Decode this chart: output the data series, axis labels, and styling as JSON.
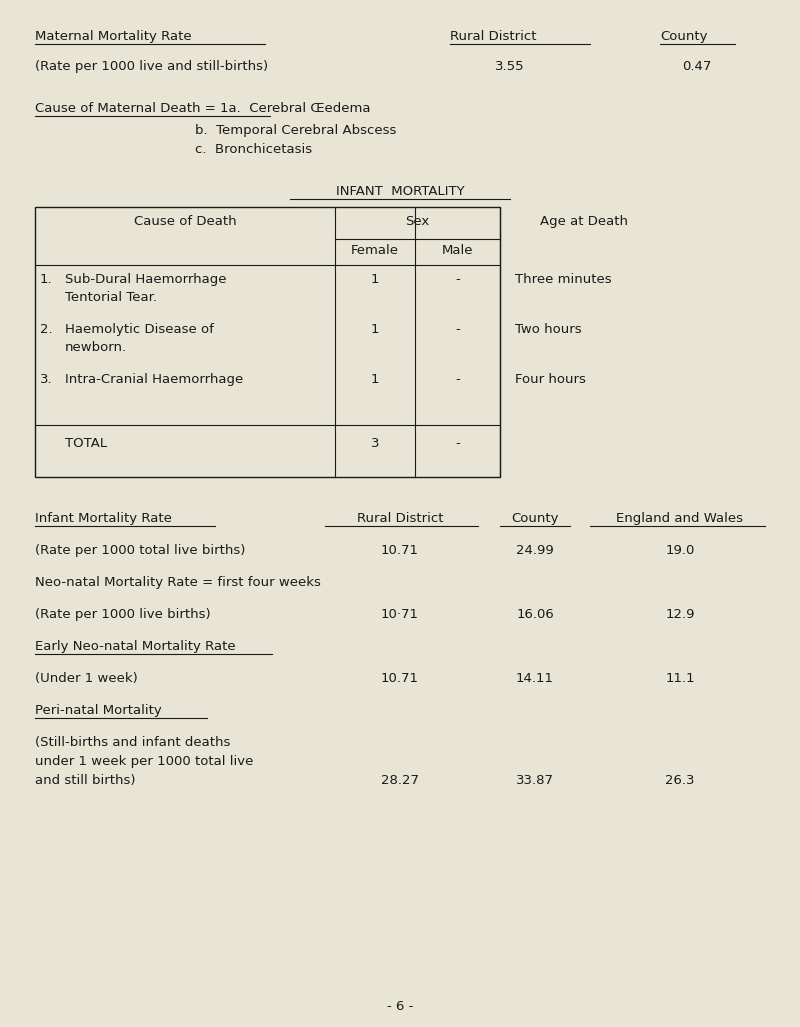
{
  "bg_color": "#e8e5d5",
  "text_color": "#1a1a1a",
  "font_family": "Courier New",
  "maternal_title": "Maternal Mortality Rate",
  "rural_district_label": "Rural District",
  "county_label": "County",
  "rate_label": "(Rate per 1000 live and still-births)",
  "rural_district_val": "3.55",
  "county_val": "0.47",
  "cause_label": "Cause of Maternal Death",
  "cause_line1": "= 1a.  Cerebral Œedema",
  "cause_line2": "b.  Temporal Cerebral Abscess",
  "cause_line3": "c.  Bronchicetasis",
  "infant_title": "INFANT  MORTALITY",
  "total_label": "TOTAL",
  "total_female": "3",
  "total_male": "-",
  "infant_rate_title": "Infant Mortality Rate",
  "england_wales_label": "England and Wales",
  "page_num": "- 6 -",
  "fs": 9.5
}
